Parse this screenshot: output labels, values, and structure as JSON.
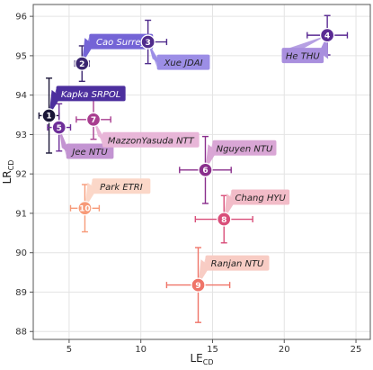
{
  "chart_data": {
    "type": "scatter",
    "xlabel": {
      "main": "LE",
      "sub": "CD"
    },
    "ylabel": {
      "main": "LR",
      "sub": "CD"
    },
    "xlim": [
      2.5,
      26
    ],
    "ylim": [
      87.8,
      96.3
    ],
    "xticks": [
      5,
      10,
      15,
      20,
      25
    ],
    "yticks": [
      88,
      89,
      90,
      91,
      92,
      93,
      94,
      95,
      96
    ],
    "grid": true,
    "points": [
      {
        "id": "1",
        "label": "Kapka SRPOL",
        "x": 3.6,
        "y": 93.48,
        "xerr": [
          0.7,
          0.7
        ],
        "yerr": [
          0.95,
          0.95
        ],
        "color": "#1a1638",
        "label_color": "#4c2f9e",
        "text_color": "#ffffff",
        "label_pos": "upper-right"
      },
      {
        "id": "2",
        "label": "Cao Surrey",
        "x": 5.9,
        "y": 94.8,
        "xerr": [
          0.5,
          0.5
        ],
        "yerr": [
          0.45,
          0.45
        ],
        "color": "#3b2670",
        "label_color": "#7464d6",
        "text_color": "#ffffff",
        "label_pos": "upper-right"
      },
      {
        "id": "3",
        "label": "Xue JDAI",
        "x": 10.5,
        "y": 95.35,
        "xerr": [
          1.3,
          1.3
        ],
        "yerr": [
          0.55,
          0.55
        ],
        "color": "#4f2b8c",
        "label_color": "#9c8ee6",
        "text_color": "#222222",
        "label_pos": "lower-right"
      },
      {
        "id": "4",
        "label": "He THU",
        "x": 23.0,
        "y": 95.52,
        "xerr": [
          1.4,
          1.4
        ],
        "yerr": [
          0.5,
          0.5
        ],
        "color": "#5a2a93",
        "label_color": "#a98fde",
        "text_color": "#222222",
        "label_pos": "lower-left"
      },
      {
        "id": "5",
        "label": "Jee NTU",
        "x": 4.3,
        "y": 93.18,
        "xerr": [
          0.8,
          0.8
        ],
        "yerr": [
          0.6,
          0.6
        ],
        "color": "#6e2f99",
        "label_color": "#c394d2",
        "text_color": "#222222",
        "label_pos": "lower"
      },
      {
        "id": "6",
        "label": "Nguyen NTU",
        "x": 14.5,
        "y": 92.1,
        "xerr": [
          1.8,
          1.8
        ],
        "yerr": [
          0.85,
          0.85
        ],
        "color": "#8a2f8c",
        "label_color": "#d9a6d5",
        "text_color": "#222222",
        "label_pos": "upper-right"
      },
      {
        "id": "7",
        "label": "MazzonYasuda NTT",
        "x": 6.7,
        "y": 93.38,
        "xerr": [
          1.2,
          1.2
        ],
        "yerr": [
          0.5,
          0.5
        ],
        "color": "#a83d8f",
        "label_color": "#e8b6d8",
        "text_color": "#222222",
        "label_pos": "lower-right"
      },
      {
        "id": "8",
        "label": "Chang HYU",
        "x": 15.8,
        "y": 90.85,
        "xerr": [
          2.0,
          2.0
        ],
        "yerr": [
          0.6,
          0.6
        ],
        "color": "#d94f7a",
        "label_color": "#f2bcc8",
        "text_color": "#222222",
        "label_pos": "upper-right"
      },
      {
        "id": "9",
        "label": "Ranjan NTU",
        "x": 14.0,
        "y": 89.18,
        "xerr": [
          2.2,
          2.2
        ],
        "yerr": [
          0.95,
          0.95
        ],
        "color": "#ef7468",
        "label_color": "#f8ccc4",
        "text_color": "#222222",
        "label_pos": "upper-right"
      },
      {
        "id": "10",
        "label": "Park ETRI",
        "x": 6.1,
        "y": 91.13,
        "xerr": [
          1.0,
          1.0
        ],
        "yerr": [
          0.6,
          0.6
        ],
        "color": "#f79a78",
        "label_color": "#fbd7c8",
        "text_color": "#222222",
        "label_pos": "upper-right"
      }
    ]
  }
}
